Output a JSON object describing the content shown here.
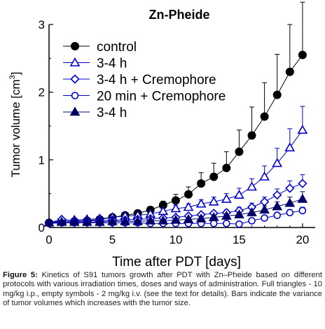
{
  "chart_data": {
    "type": "line",
    "title": "Zn-Pheide",
    "xlabel": "Time after PDT [days]",
    "ylabel_main": "Tumor volume [cm",
    "ylabel_sup": "3",
    "ylabel_end": "]",
    "xlim": [
      0,
      21
    ],
    "ylim": [
      0,
      3
    ],
    "x_ticks": [
      0,
      5,
      10,
      15,
      20
    ],
    "y_ticks": [
      0,
      1,
      2,
      3
    ],
    "legend_position": "top-left",
    "series": [
      {
        "name": "control",
        "marker": "filled-circle",
        "color": "#000000",
        "x": [
          0,
          1,
          2,
          3,
          4,
          5,
          6,
          7,
          8,
          9,
          10,
          11,
          12,
          13,
          14,
          15,
          16,
          17,
          18,
          19,
          20
        ],
        "y": [
          0.07,
          0.08,
          0.09,
          0.1,
          0.12,
          0.15,
          0.18,
          0.21,
          0.26,
          0.33,
          0.4,
          0.49,
          0.65,
          0.75,
          0.88,
          1.12,
          1.36,
          1.64,
          1.96,
          2.3,
          2.55
        ],
        "err": [
          0.01,
          0.01,
          0.01,
          0.01,
          0.02,
          0.02,
          0.03,
          0.03,
          0.05,
          0.06,
          0.09,
          0.11,
          0.16,
          0.2,
          0.24,
          0.32,
          0.42,
          0.5,
          0.6,
          0.7,
          0.78
        ]
      },
      {
        "name": "3-4 h",
        "marker": "open-triangle",
        "color": "#0000cc",
        "x": [
          0,
          1,
          2,
          3,
          4,
          5,
          6,
          7,
          8,
          9,
          10,
          11,
          12,
          13,
          14,
          15,
          16,
          17,
          18,
          19,
          20
        ],
        "y": [
          0.07,
          0.1,
          0.11,
          0.12,
          0.13,
          0.15,
          0.17,
          0.18,
          0.2,
          0.24,
          0.28,
          0.3,
          0.35,
          0.38,
          0.42,
          0.48,
          0.6,
          0.75,
          0.95,
          1.18,
          1.44
        ],
        "err": [
          0.01,
          0.01,
          0.01,
          0.01,
          0.01,
          0.02,
          0.02,
          0.02,
          0.03,
          0.04,
          0.05,
          0.05,
          0.06,
          0.07,
          0.08,
          0.1,
          0.12,
          0.16,
          0.22,
          0.28,
          0.35
        ]
      },
      {
        "name": "3-4 h + Cremophore",
        "marker": "open-diamond",
        "color": "#0000cc",
        "x": [
          0,
          1,
          2,
          3,
          4,
          5,
          6,
          7,
          8,
          9,
          10,
          11,
          12,
          13,
          14,
          15,
          16,
          17,
          18,
          19,
          20
        ],
        "y": [
          0.07,
          0.12,
          0.1,
          0.1,
          0.1,
          0.11,
          0.11,
          0.12,
          0.13,
          0.14,
          0.15,
          0.17,
          0.19,
          0.21,
          0.22,
          0.25,
          0.3,
          0.38,
          0.48,
          0.58,
          0.65
        ],
        "err": [
          0.01,
          0.01,
          0.01,
          0.01,
          0.01,
          0.01,
          0.01,
          0.01,
          0.02,
          0.02,
          0.02,
          0.03,
          0.03,
          0.03,
          0.04,
          0.05,
          0.06,
          0.07,
          0.09,
          0.11,
          0.13
        ]
      },
      {
        "name": "20 min + Cremophore",
        "marker": "open-circle",
        "color": "#0000cc",
        "x": [
          0,
          1,
          2,
          3,
          4,
          5,
          6,
          7,
          8,
          9,
          10,
          11,
          12,
          13,
          14,
          15,
          16,
          17,
          18,
          19,
          20
        ],
        "y": [
          0.06,
          0.07,
          0.07,
          0.07,
          0.07,
          0.07,
          0.07,
          0.07,
          0.06,
          0.06,
          0.06,
          0.06,
          0.06,
          0.06,
          0.06,
          0.05,
          0.1,
          0.14,
          0.18,
          0.22,
          0.25
        ],
        "err": [
          0.01,
          0.01,
          0.01,
          0.01,
          0.01,
          0.01,
          0.01,
          0.01,
          0.01,
          0.01,
          0.01,
          0.01,
          0.01,
          0.01,
          0.01,
          0.01,
          0.02,
          0.03,
          0.03,
          0.04,
          0.05
        ]
      },
      {
        "name": "3-4 h",
        "marker": "filled-triangle",
        "color": "#000066",
        "x": [
          0,
          1,
          2,
          3,
          4,
          5,
          6,
          7,
          8,
          9,
          10,
          11,
          12,
          13,
          14,
          15,
          16,
          17,
          18,
          19,
          20
        ],
        "y": [
          0.07,
          0.08,
          0.08,
          0.08,
          0.08,
          0.09,
          0.09,
          0.09,
          0.1,
          0.1,
          0.11,
          0.12,
          0.13,
          0.15,
          0.17,
          0.19,
          0.22,
          0.26,
          0.31,
          0.36,
          0.42
        ],
        "err": [
          0.01,
          0.01,
          0.01,
          0.01,
          0.01,
          0.01,
          0.01,
          0.01,
          0.01,
          0.02,
          0.02,
          0.02,
          0.03,
          0.03,
          0.04,
          0.04,
          0.05,
          0.06,
          0.07,
          0.09,
          0.11
        ]
      }
    ]
  },
  "caption": {
    "label": "Figure 5:",
    "text": " Kinetics of S91 tumors growth after PDT with Zn–Pheide based on different protocols with various irradiation times, doses and ways of administration. Full triangles - 10 mg/kg i.p., empty symbols - 2 mg/kg i.v. (see the text for details). Bars indicate the variance of tumor volumes which increases with the tumor size."
  }
}
